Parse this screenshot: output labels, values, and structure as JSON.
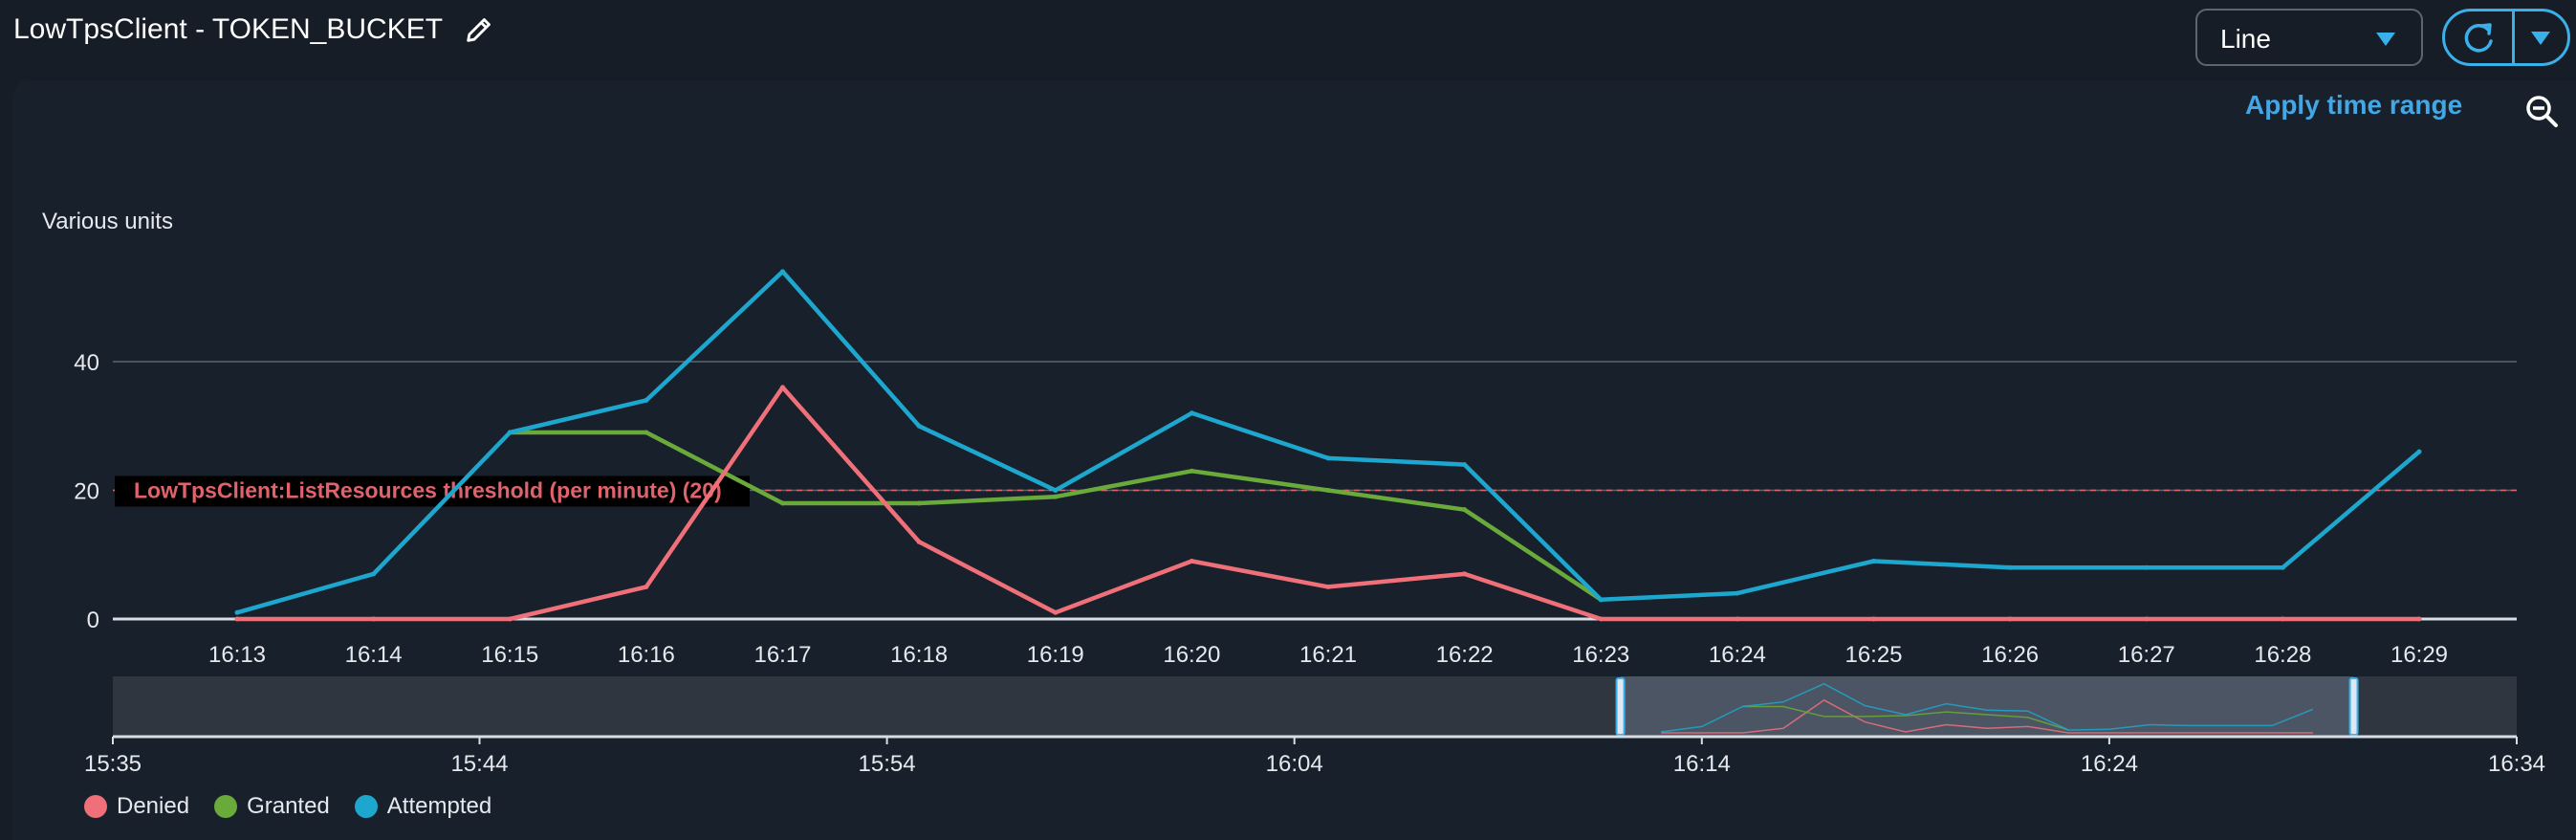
{
  "header": {
    "title": "LowTpsClient - TOKEN_BUCKET",
    "chart_type_select": {
      "value": "Line"
    }
  },
  "toolbar": {
    "apply_label": "Apply time range"
  },
  "colors": {
    "denied": "#f0707a",
    "granted": "#6aaa3a",
    "attempted": "#1ea7ce",
    "threshold": "#e0626b",
    "accent": "#3ab0ea"
  },
  "icons": {
    "edit": "pencil-icon",
    "dropdown": "caret-down-icon",
    "refresh": "refresh-icon",
    "more": "caret-down-icon",
    "zoom": "zoom-out-icon"
  },
  "chart_data": {
    "type": "line",
    "ylabel": "Various units",
    "ylim": [
      0,
      55
    ],
    "yticks": [
      0,
      20,
      40
    ],
    "categories": [
      "16:13",
      "16:14",
      "16:15",
      "16:16",
      "16:17",
      "16:18",
      "16:19",
      "16:20",
      "16:21",
      "16:22",
      "16:23",
      "16:24",
      "16:25",
      "16:26",
      "16:27",
      "16:28",
      "16:29"
    ],
    "series": [
      {
        "name": "Denied",
        "color": "#f0707a",
        "values": [
          0,
          0,
          0,
          5,
          36,
          12,
          1,
          9,
          5,
          7,
          0,
          0,
          0,
          0,
          0,
          0,
          0
        ]
      },
      {
        "name": "Granted",
        "color": "#6aaa3a",
        "values": [
          null,
          null,
          29,
          29,
          18,
          18,
          19,
          23,
          20,
          17,
          3,
          null,
          null,
          null,
          null,
          null,
          null
        ]
      },
      {
        "name": "Attempted",
        "color": "#1ea7ce",
        "values": [
          1,
          7,
          29,
          34,
          54,
          30,
          20,
          32,
          25,
          24,
          3,
          4,
          9,
          8,
          8,
          8,
          26
        ]
      }
    ],
    "threshold": {
      "label": "LowTpsClient:ListResources threshold (per minute) (20)",
      "value": 20
    },
    "grid": true,
    "legend_position": "bottom-left",
    "overview": {
      "tick_labels": [
        "15:35",
        "15:44",
        "15:54",
        "16:04",
        "16:14",
        "16:24",
        "16:34"
      ],
      "selected_range": [
        "16:12",
        "16:30"
      ]
    }
  }
}
